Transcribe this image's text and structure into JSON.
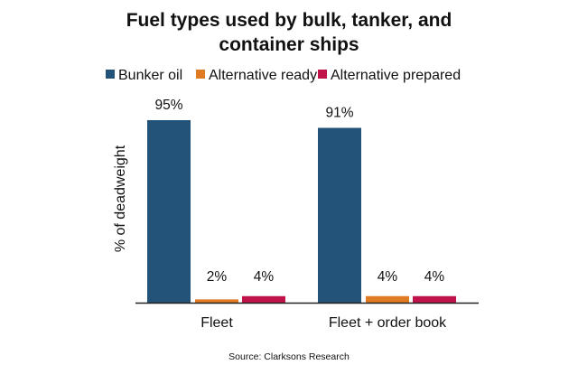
{
  "chart_data": {
    "type": "bar",
    "title_lines": [
      "Fuel types used by bulk, tanker, and",
      "container ships"
    ],
    "xlabel": "",
    "ylabel": "% of deadweight",
    "ylim": [
      0,
      100
    ],
    "grid": false,
    "legend_position": "top",
    "categories": [
      "Fleet",
      "Fleet + order book"
    ],
    "series": [
      {
        "name": "Bunker oil",
        "color": "#245379",
        "values": [
          95,
          91
        ],
        "labels": [
          "95%",
          "91%"
        ]
      },
      {
        "name": "Alternative ready",
        "color": "#e07b24",
        "values": [
          2,
          4
        ],
        "labels": [
          "2%",
          "4%"
        ]
      },
      {
        "name": "Alternative prepared",
        "color": "#c0134a",
        "values": [
          4,
          4
        ],
        "labels": [
          "4%",
          "4%"
        ]
      }
    ],
    "source": "Source: Clarksons Research"
  }
}
